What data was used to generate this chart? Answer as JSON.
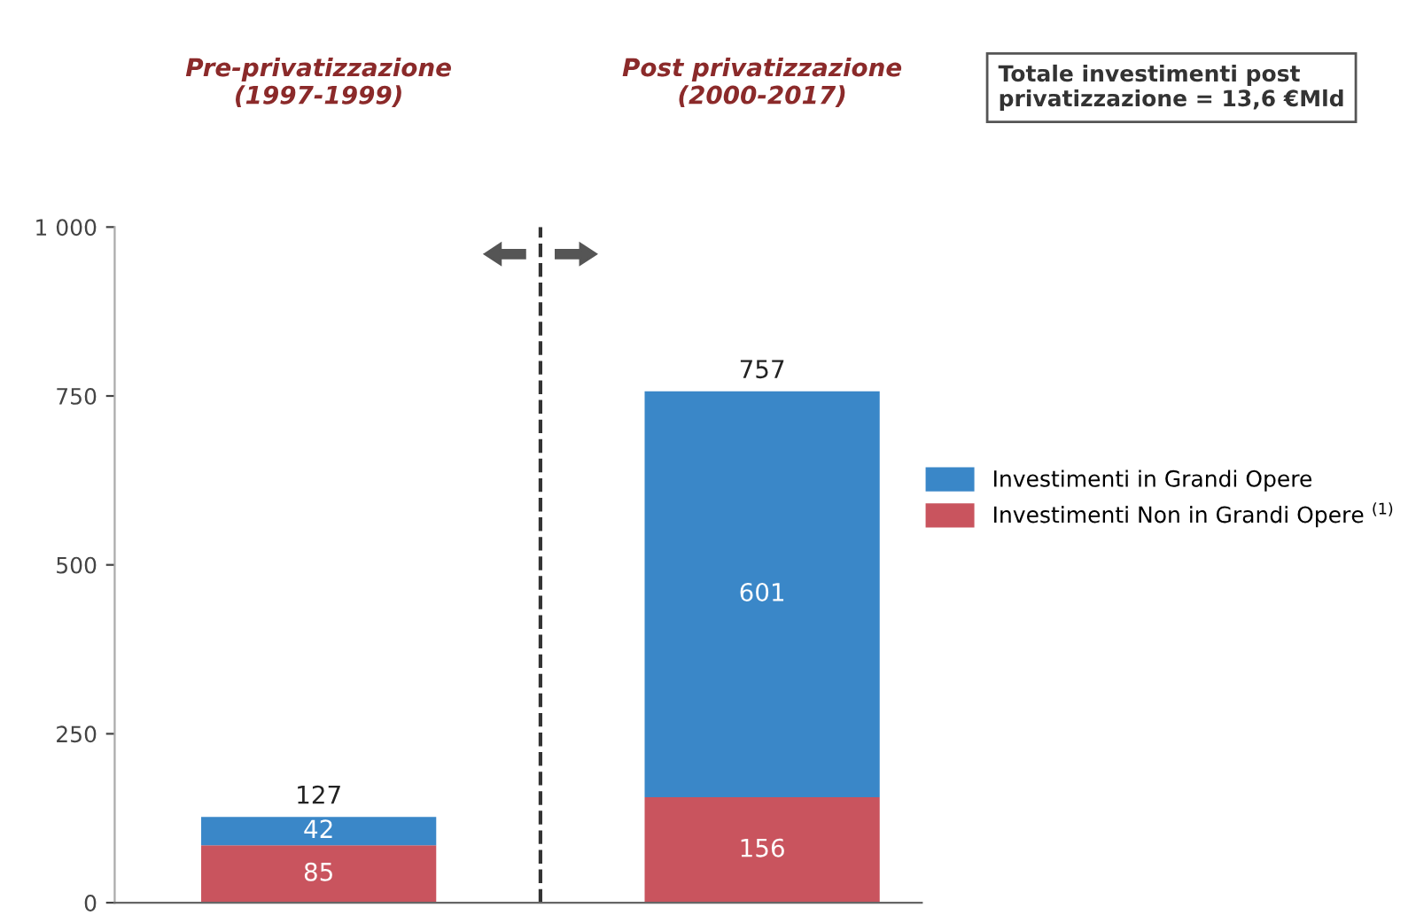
{
  "chart_data": {
    "type": "bar",
    "stacked": true,
    "categories": [
      "Pre-privatizzazione\n(1997-1999)",
      "Post privatizzazione\n(2000-2017)"
    ],
    "series": [
      {
        "name": "Investimenti Non in Grandi Opere $^{(1)}$",
        "color": "#c9545e",
        "values": [
          85,
          156
        ]
      },
      {
        "name": "Investimenti in Grandi Opere",
        "color": "#3a87c8",
        "values": [
          42,
          601
        ]
      }
    ],
    "data_labels": true,
    "totals": [
      "127",
      "757"
    ],
    "ylim": [
      0,
      1000
    ],
    "yticks": [
      0,
      250,
      500,
      750,
      {
        "value": 1000,
        "label": "1 000"
      }
    ],
    "annotations": [
      "Totale investimenti post\nprivatizzazione = 13,6 €Mld"
    ],
    "legend": "right",
    "grid": false
  }
}
